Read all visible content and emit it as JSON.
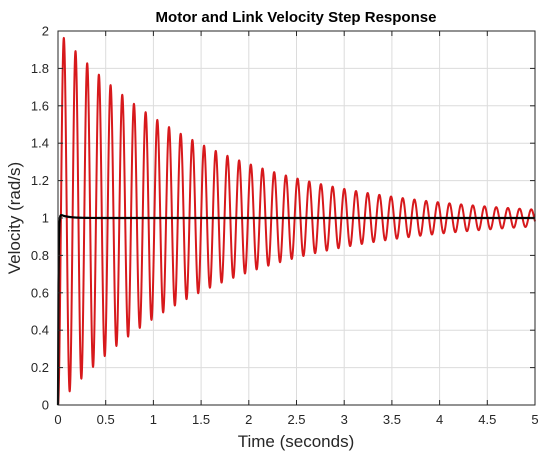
{
  "chart_data": {
    "type": "line",
    "title": "Motor and Link Velocity Step Response",
    "xlabel": "Time (seconds)",
    "ylabel": "Velocity (rad/s)",
    "xlim": [
      0,
      5
    ],
    "ylim": [
      0,
      2
    ],
    "xticks": [
      0,
      0.5,
      1,
      1.5,
      2,
      2.5,
      3,
      3.5,
      4,
      4.5,
      5
    ],
    "xtick_labels": [
      "0",
      "0.5",
      "1",
      "1.5",
      "2",
      "2.5",
      "3",
      "3.5",
      "4",
      "4.5",
      "5"
    ],
    "yticks": [
      0,
      0.2,
      0.4,
      0.6,
      0.8,
      1,
      1.2,
      1.4,
      1.6,
      1.8,
      2
    ],
    "ytick_labels": [
      "0",
      "0.2",
      "0.4",
      "0.6",
      "0.8",
      "1",
      "1.2",
      "1.4",
      "1.6",
      "1.8",
      "2"
    ],
    "grid": true,
    "series": [
      {
        "color": "#d7191c",
        "model": "damped_oscillation",
        "final_value": 1.0,
        "amplitude": 1.0,
        "period": 0.1225,
        "decay_rate": 0.62,
        "samples": [
          [
            0,
            0
          ],
          [
            0.06,
            1.97
          ],
          [
            0.12,
            0.09
          ],
          [
            0.18,
            1.87
          ],
          [
            0.25,
            0.17
          ],
          [
            0.55,
            1.71
          ],
          [
            1.0,
            1.52
          ],
          [
            1.5,
            1.38
          ],
          [
            2.0,
            1.29
          ],
          [
            2.5,
            1.21
          ],
          [
            3.0,
            1.15
          ],
          [
            3.5,
            1.11
          ],
          [
            4.0,
            1.08
          ],
          [
            4.5,
            1.06
          ],
          [
            5.0,
            1.03
          ]
        ]
      },
      {
        "color": "#000000",
        "model": "overshoot_settle",
        "final_value": 1.0,
        "samples": [
          [
            0,
            0
          ],
          [
            0.015,
            0.95
          ],
          [
            0.04,
            1.02
          ],
          [
            0.1,
            1.01
          ],
          [
            0.2,
            1.0
          ],
          [
            5.0,
            1.0
          ]
        ]
      }
    ]
  }
}
